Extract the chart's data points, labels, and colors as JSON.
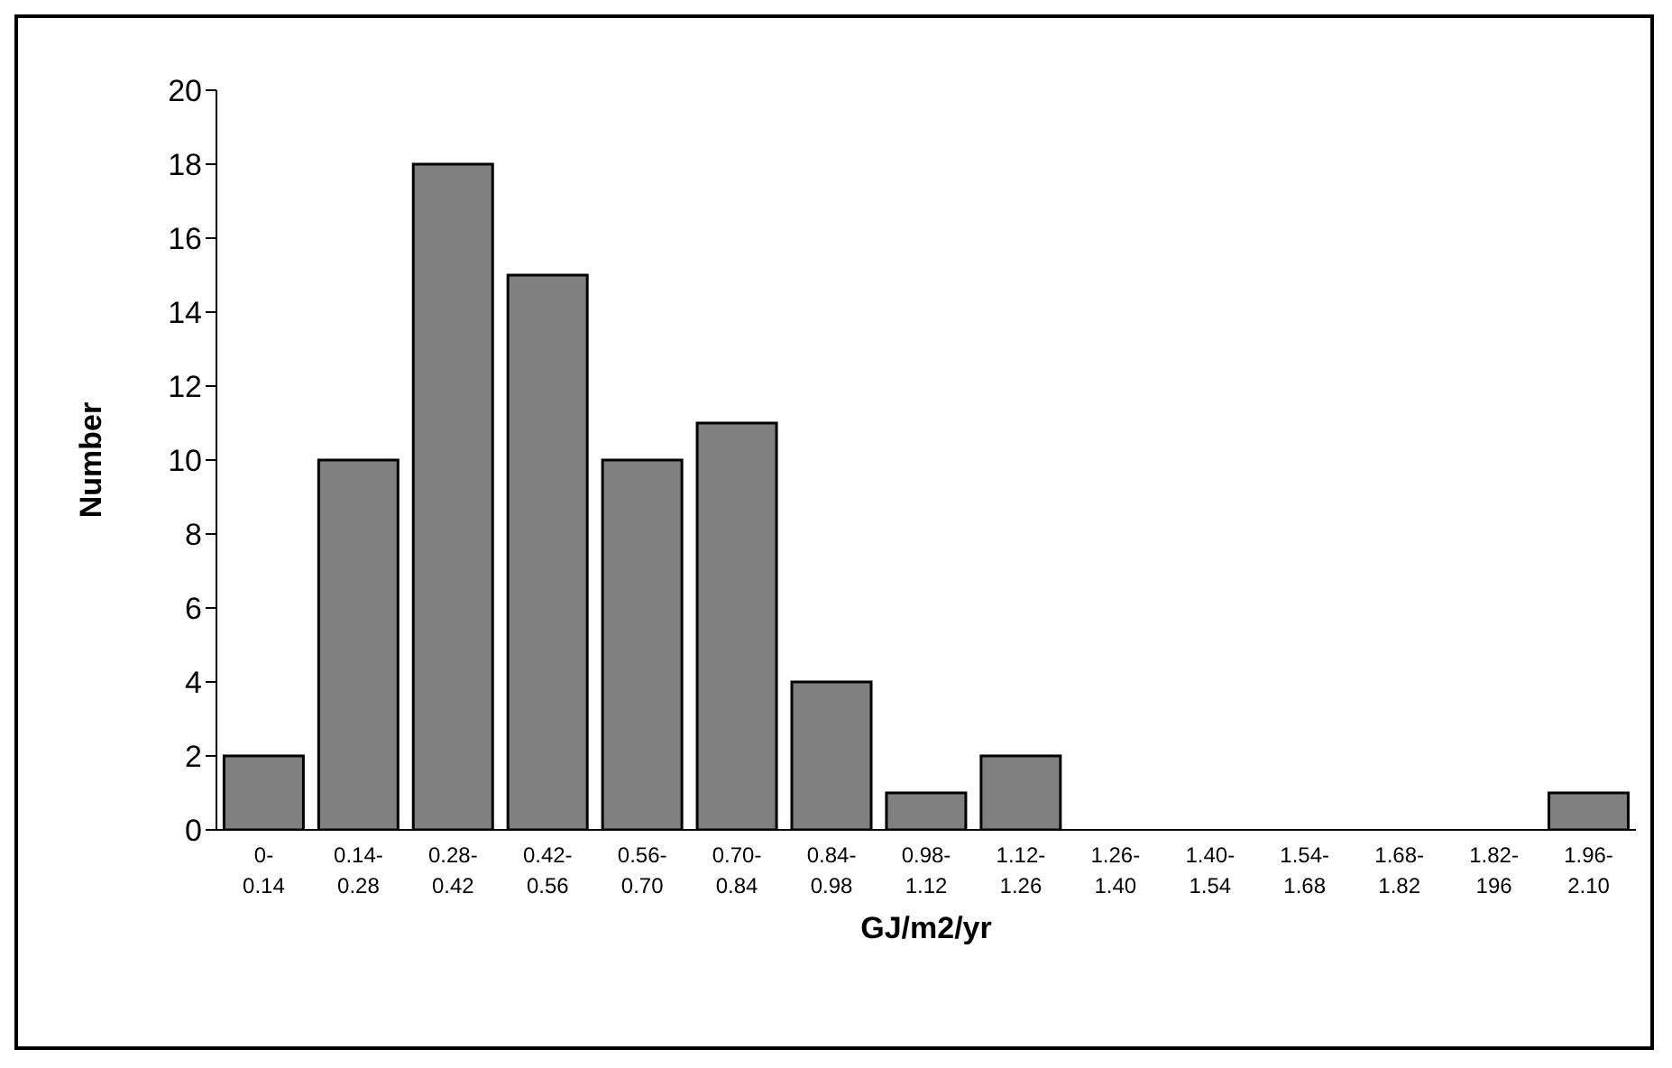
{
  "chart_data": {
    "type": "bar",
    "xlabel": "GJ/m2/yr",
    "ylabel": "Number",
    "categories": [
      "0-0.14",
      "0.14-0.28",
      "0.28-0.42",
      "0.42-0.56",
      "0.56-0.70",
      "0.70-0.84",
      "0.84-0.98",
      "0.98-1.12",
      "1.12-1.26",
      "1.26-1.40",
      "1.40-1.54",
      "1.54-1.68",
      "1.68-1.82",
      "1.82-196",
      "1.96-2.10"
    ],
    "values": [
      2,
      10,
      18,
      15,
      10,
      11,
      4,
      1,
      2,
      0,
      0,
      0,
      0,
      0,
      1
    ],
    "color": "#808080",
    "ylim": [
      0,
      20
    ],
    "yticks": [
      0,
      2,
      4,
      6,
      8,
      10,
      12,
      14,
      16,
      18,
      20
    ]
  }
}
